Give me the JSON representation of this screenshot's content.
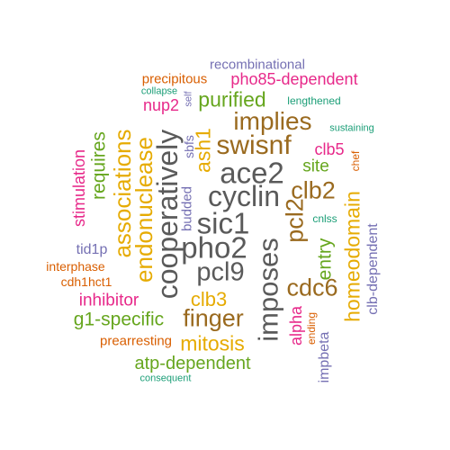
{
  "colors": {
    "gray": "#5a5a5a",
    "brown": "#9a6a1f",
    "orange": "#d95f02",
    "purple": "#7570b3",
    "magenta": "#e7298a",
    "green": "#66a61e",
    "gold": "#e6ab02",
    "teal": "#1b9e77"
  },
  "words": [
    {
      "text": "recombinational",
      "color": "purple"
    },
    {
      "text": "precipitous",
      "color": "orange"
    },
    {
      "text": "pho85-dependent",
      "color": "magenta"
    },
    {
      "text": "collapse",
      "color": "teal"
    },
    {
      "text": "self",
      "color": "purple"
    },
    {
      "text": "purified",
      "color": "green"
    },
    {
      "text": "lengthened",
      "color": "teal"
    },
    {
      "text": "nup2",
      "color": "magenta"
    },
    {
      "text": "implies",
      "color": "brown"
    },
    {
      "text": "sustaining",
      "color": "teal"
    },
    {
      "text": "associations",
      "color": "gold"
    },
    {
      "text": "endonuclease",
      "color": "gold"
    },
    {
      "text": "cooperatively",
      "color": "gray"
    },
    {
      "text": "sbfs",
      "color": "purple"
    },
    {
      "text": "ash1",
      "color": "gold"
    },
    {
      "text": "swisnf",
      "color": "brown"
    },
    {
      "text": "clb5",
      "color": "magenta"
    },
    {
      "text": "chef",
      "color": "orange"
    },
    {
      "text": "stimulation",
      "color": "magenta"
    },
    {
      "text": "requires",
      "color": "green"
    },
    {
      "text": "ace2",
      "color": "gray"
    },
    {
      "text": "site",
      "color": "green"
    },
    {
      "text": "cyclin",
      "color": "gray"
    },
    {
      "text": "clb2",
      "color": "brown"
    },
    {
      "text": "budded",
      "color": "purple"
    },
    {
      "text": "sic1",
      "color": "gray"
    },
    {
      "text": "pcl2",
      "color": "brown"
    },
    {
      "text": "cnlss",
      "color": "teal"
    },
    {
      "text": "entry",
      "color": "green"
    },
    {
      "text": "homeodomain",
      "color": "gold"
    },
    {
      "text": "clb-dependent",
      "color": "purple"
    },
    {
      "text": "tid1p",
      "color": "purple"
    },
    {
      "text": "pho2",
      "color": "gray"
    },
    {
      "text": "imposes",
      "color": "gray"
    },
    {
      "text": "interphase",
      "color": "orange"
    },
    {
      "text": "pcl9",
      "color": "gray"
    },
    {
      "text": "cdh1hct1",
      "color": "orange"
    },
    {
      "text": "cdc6",
      "color": "brown"
    },
    {
      "text": "inhibitor",
      "color": "magenta"
    },
    {
      "text": "clb3",
      "color": "gold"
    },
    {
      "text": "finger",
      "color": "brown"
    },
    {
      "text": "alpha",
      "color": "magenta"
    },
    {
      "text": "ending",
      "color": "orange"
    },
    {
      "text": "g1-specific",
      "color": "green"
    },
    {
      "text": "impbeta",
      "color": "purple"
    },
    {
      "text": "prearresting",
      "color": "orange"
    },
    {
      "text": "mitosis",
      "color": "gold"
    },
    {
      "text": "atp-dependent",
      "color": "green"
    },
    {
      "text": "consequent",
      "color": "teal"
    }
  ]
}
